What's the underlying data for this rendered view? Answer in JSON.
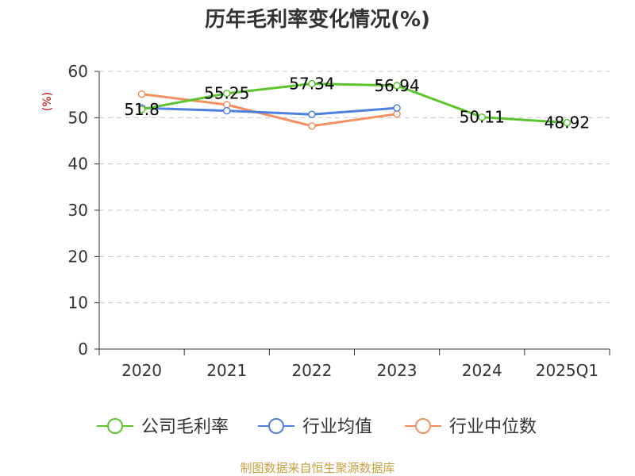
{
  "chart_data": {
    "type": "line",
    "title": "历年毛利率变化情况(%)",
    "ylabel": "(%)",
    "categories": [
      "2020",
      "2021",
      "2022",
      "2023",
      "2024",
      "2025Q1"
    ],
    "ylim": [
      0,
      60
    ],
    "yticks": [
      0,
      10,
      20,
      30,
      40,
      50,
      60
    ],
    "grid": true,
    "legend_position": "bottom",
    "series": [
      {
        "name": "公司毛利率",
        "color": "#5cc52e",
        "values": [
          51.8,
          55.25,
          57.34,
          56.94,
          50.11,
          48.92
        ],
        "labels": [
          "51.8",
          "55.25",
          "57.34",
          "56.94",
          "50.11",
          "48.92"
        ]
      },
      {
        "name": "行业均值",
        "color": "#4f80e0",
        "values": [
          52.1,
          51.5,
          50.7,
          52.1,
          null,
          null
        ]
      },
      {
        "name": "行业中位数",
        "color": "#f49060",
        "values": [
          55.1,
          52.8,
          48.2,
          50.8,
          null,
          null
        ]
      }
    ],
    "source": "制图数据来自恒生聚源数据库"
  }
}
